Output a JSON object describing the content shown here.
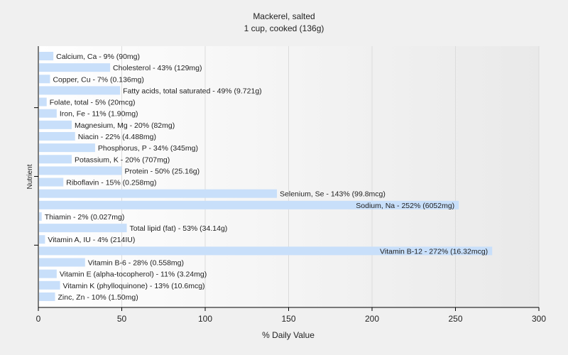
{
  "chart_data": {
    "type": "bar",
    "orientation": "horizontal",
    "title": "Mackerel, salted",
    "subtitle": "1 cup, cooked (136g)",
    "xlabel": "% Daily Value",
    "ylabel": "Nutrient",
    "xlim": [
      0,
      300
    ],
    "xticks": [
      "0",
      "50",
      "100",
      "150",
      "200",
      "250",
      "300"
    ],
    "grid": true,
    "bar_color": "#c8dffa",
    "categories": [
      "Calcium, Ca",
      "Cholesterol",
      "Copper, Cu",
      "Fatty acids, total saturated",
      "Folate, total",
      "Iron, Fe",
      "Magnesium, Mg",
      "Niacin",
      "Phosphorus, P",
      "Potassium, K",
      "Protein",
      "Riboflavin",
      "Selenium, Se",
      "Sodium, Na",
      "Thiamin",
      "Total lipid (fat)",
      "Vitamin A, IU",
      "Vitamin B-12",
      "Vitamin B-6",
      "Vitamin E (alpha-tocopherol)",
      "Vitamin K (phylloquinone)",
      "Zinc, Zn"
    ],
    "values": [
      9,
      43,
      7,
      49,
      5,
      11,
      20,
      22,
      34,
      20,
      50,
      15,
      143,
      252,
      2,
      53,
      4,
      272,
      28,
      11,
      13,
      10
    ],
    "labels": [
      "Calcium, Ca - 9% (90mg)",
      "Cholesterol - 43% (129mg)",
      "Copper, Cu - 7% (0.136mg)",
      "Fatty acids, total saturated - 49% (9.721g)",
      "Folate, total - 5% (20mcg)",
      "Iron, Fe - 11% (1.90mg)",
      "Magnesium, Mg - 20% (82mg)",
      "Niacin - 22% (4.488mg)",
      "Phosphorus, P - 34% (345mg)",
      "Potassium, K - 20% (707mg)",
      "Protein - 50% (25.16g)",
      "Riboflavin - 15% (0.258mg)",
      "Selenium, Se - 143% (99.8mcg)",
      "Sodium, Na - 252% (6052mg)",
      "Thiamin - 2% (0.027mg)",
      "Total lipid (fat) - 53% (34.14g)",
      "Vitamin A, IU - 4% (214IU)",
      "Vitamin B-12 - 272% (16.32mcg)",
      "Vitamin B-6 - 28% (0.558mg)",
      "Vitamin E (alpha-tocopherol) - 11% (3.24mg)",
      "Vitamin K (phylloquinone) - 13% (10.6mcg)",
      "Zinc, Zn - 10% (1.50mg)"
    ]
  }
}
